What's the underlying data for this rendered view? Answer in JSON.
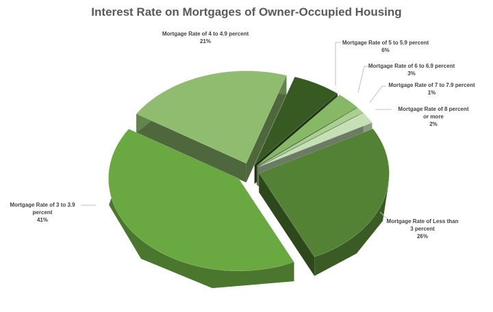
{
  "chart_data": {
    "type": "pie",
    "title": "Interest Rate on Mortgages of Owner-Occupied Housing",
    "style": "3d-exploded",
    "slices": [
      {
        "label": "Mortgage Rate of 5 to 5.9 percent",
        "value": 6,
        "pct_label": "6%",
        "color": "#375a22"
      },
      {
        "label": "Mortgage Rate of 6 to 6.9 percent",
        "value": 3,
        "pct_label": "3%",
        "color": "#86b865"
      },
      {
        "label": "Mortgage Rate of 7 to 7.9 percent",
        "value": 1,
        "pct_label": "1%",
        "color": "#a9d08e"
      },
      {
        "label": "Mortgage Rate of 8 percent or more",
        "value": 2,
        "pct_label": "2%",
        "color": "#c5e0b4"
      },
      {
        "label": "Mortgage Rate of Less than 3 percent",
        "value": 26,
        "pct_label": "26%",
        "color": "#548235"
      },
      {
        "label": "Mortgage Rate of 3 to 3.9 percent",
        "value": 41,
        "pct_label": "41%",
        "color": "#6aa842"
      },
      {
        "label": "Mortgage Rate of 4 to 4.9 percent",
        "value": 21,
        "pct_label": "21%",
        "color": "#8fbc6e"
      }
    ]
  }
}
